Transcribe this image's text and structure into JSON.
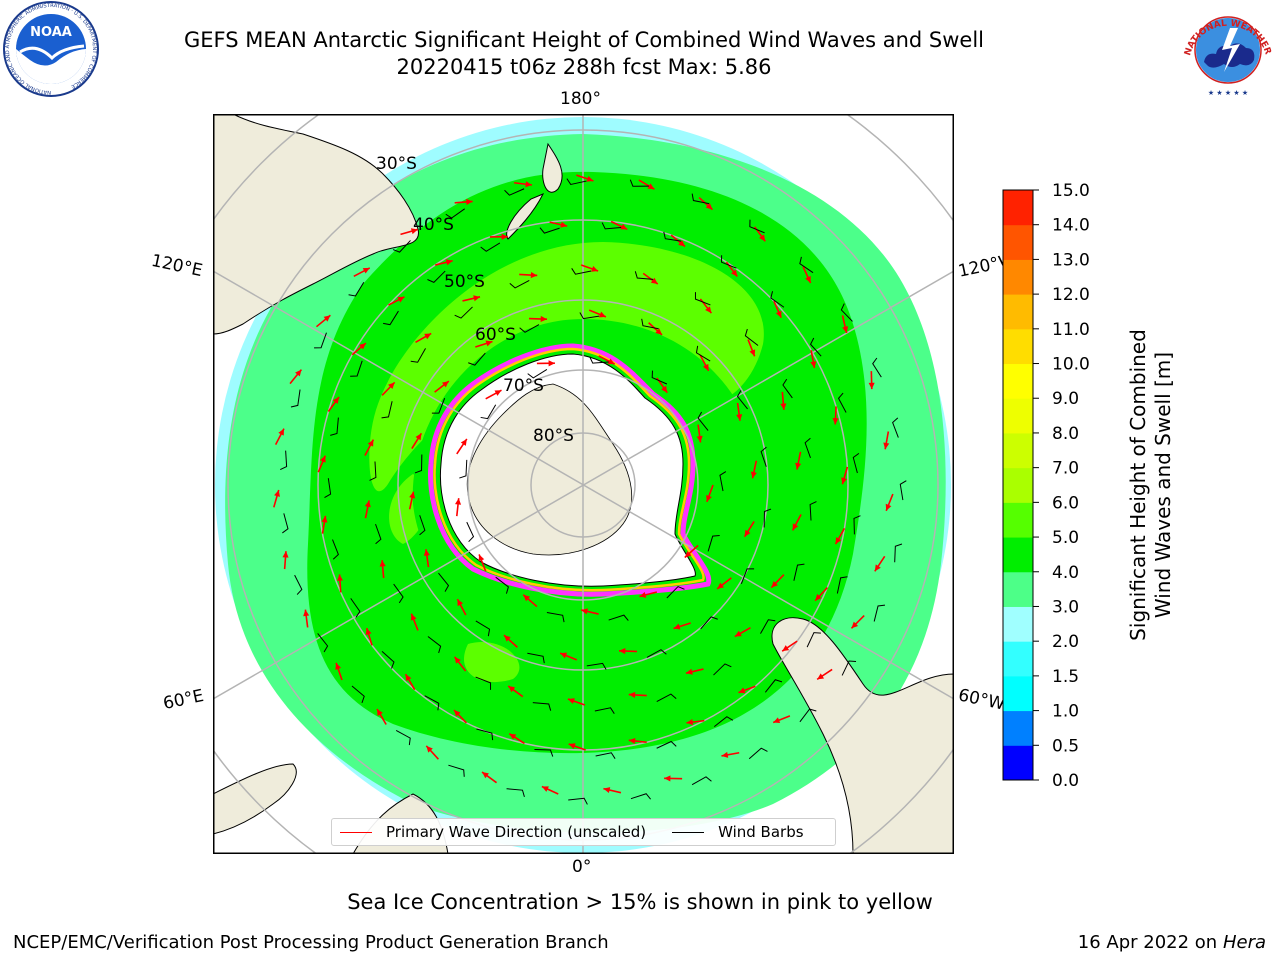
{
  "header": {
    "title_line1": "GEFS MEAN Antarctic Significant Height of Combined Wind Waves and Swell",
    "title_line2": "20220415 t06z 288h fcst   Max: 5.86"
  },
  "logos": {
    "left_text": "NOAA",
    "left_ring_text": "NATIONAL OCEANIC AND ATMOSPHERIC ADMINISTRATION · U.S. DEPARTMENT OF COMMERCE",
    "right_ring_text": "NATIONAL WEATHER SERVICE"
  },
  "map": {
    "lat_labels": [
      "30°S",
      "40°S",
      "50°S",
      "60°S",
      "70°S",
      "80°S"
    ],
    "lon_labels": {
      "top": "180°",
      "bottom": "0°",
      "upper_left": "120°E",
      "lower_left": "60°E",
      "upper_right": "120°W",
      "lower_right": "60°W"
    },
    "colors": {
      "land": "#efecdb",
      "ice_shelf": "#ffffff",
      "graticule": "#b4b4b4",
      "wave_arrow": "#ff0000",
      "barb": "#000000",
      "ice_edge": [
        "#ff33ff",
        "#ffcc00"
      ]
    }
  },
  "legend": {
    "items": [
      {
        "label": "Primary Wave Direction (unscaled)",
        "color": "#ff0000"
      },
      {
        "label": "Wind Barbs",
        "color": "#000000"
      }
    ]
  },
  "colorbar": {
    "label_line1": "Significant Height of Combined",
    "label_line2": "Wind Waves and Swell [m]",
    "ticks": [
      "0.0",
      "0.5",
      "1.0",
      "1.5",
      "2.0",
      "3.0",
      "4.0",
      "5.0",
      "6.0",
      "7.0",
      "8.0",
      "9.0",
      "10.0",
      "11.0",
      "12.0",
      "13.0",
      "14.0",
      "15.0"
    ],
    "colors": [
      "#0000ff",
      "#0080ff",
      "#00ffff",
      "#33ffff",
      "#a0ffff",
      "#4dff88",
      "#00ee00",
      "#55ff00",
      "#aaff00",
      "#ccff00",
      "#eeff00",
      "#ffff00",
      "#ffdd00",
      "#ffbb00",
      "#ff8800",
      "#ff5500",
      "#ff2200"
    ]
  },
  "chart_data": {
    "type": "heatmap",
    "title": "GEFS MEAN Antarctic Significant Height of Combined Wind Waves and Swell",
    "variable_label": "Significant Height of Combined Wind Waves and Swell [m]",
    "max_value": 5.86,
    "colorbar_range": [
      0.0,
      15.0
    ],
    "wave_height_bands_m": [
      {
        "latitude_band": "30°S–40°S",
        "approx_range": [
          1.5,
          3.0
        ]
      },
      {
        "latitude_band": "40°S–50°S",
        "approx_range": [
          3.0,
          4.5
        ]
      },
      {
        "latitude_band": "50°S–60°S",
        "approx_range": [
          4.0,
          5.86
        ]
      },
      {
        "latitude_band": "60°S–ice edge",
        "approx_range": [
          3.0,
          5.0
        ]
      }
    ]
  },
  "notes": {
    "sea_ice": "Sea Ice Concentration > 15% is shown in pink to yellow",
    "footer_left": "NCEP/EMC/Verification Post Processing Product Generation Branch",
    "footer_right_date": "16 Apr 2022 on ",
    "footer_right_machine": "Hera"
  }
}
